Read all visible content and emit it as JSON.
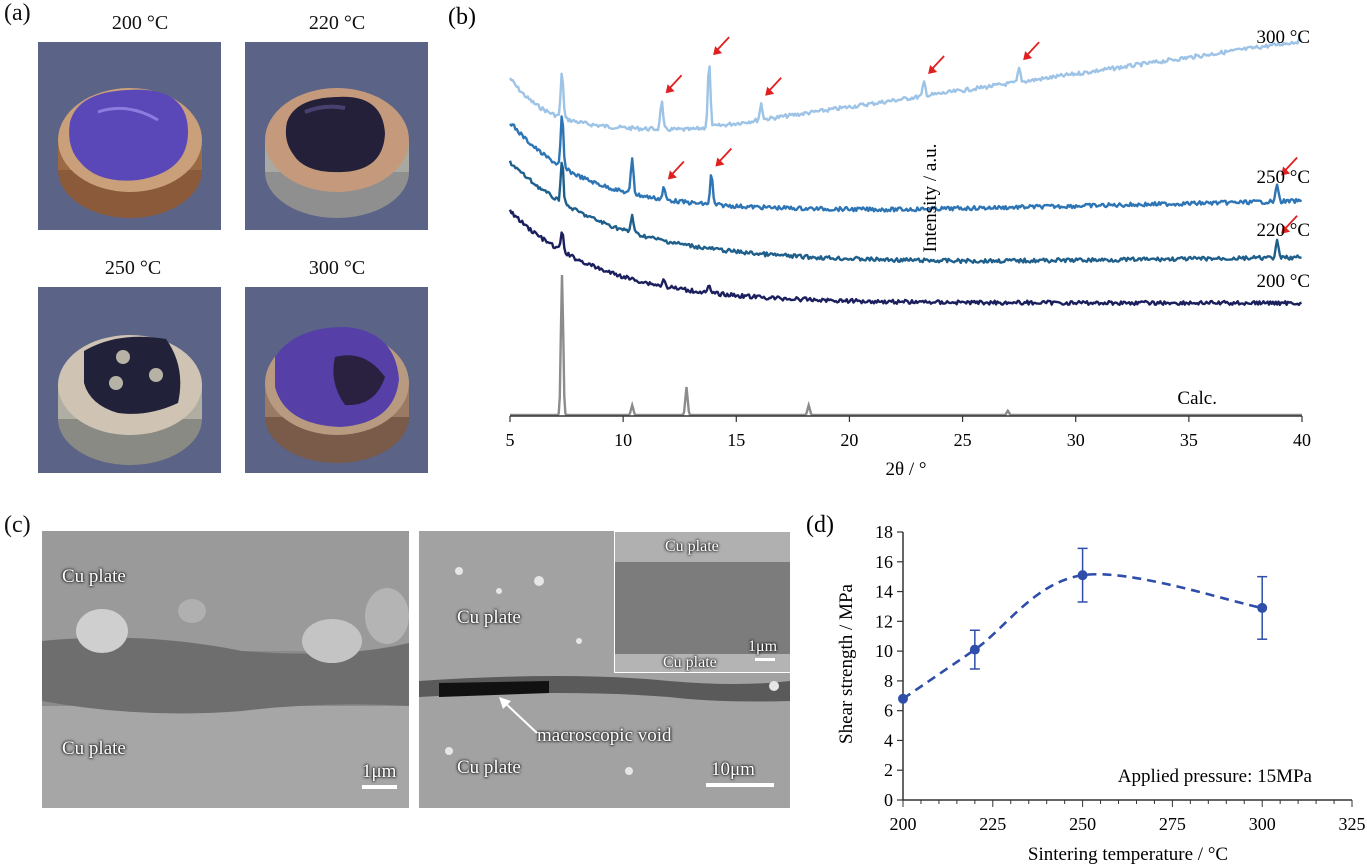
{
  "panel_a": {
    "label": "(a)",
    "samples": [
      {
        "temp": "200 °C"
      },
      {
        "temp": "220 °C"
      },
      {
        "temp": "250 °C"
      },
      {
        "temp": "300 °C"
      }
    ]
  },
  "panel_c": {
    "label": "(c)",
    "left": {
      "top_label": "Cu plate",
      "bottom_label": "Cu plate",
      "scale": "1μm"
    },
    "right": {
      "top_label": "Cu plate",
      "bottom_label": "Cu plate",
      "void_label": "macroscopic void",
      "scale": "10μm"
    },
    "inset": {
      "top_label": "Cu plate",
      "bottom_label": "Cu plate",
      "scale": "1μm"
    }
  },
  "colors": {
    "c300": "#9dc3e6",
    "c250": "#2e75b6",
    "c220": "#1f5f8b",
    "c200": "#1b1f5e",
    "calc": "#8c8c8c",
    "arrow": "#e02020",
    "strength": "#2f4eaa"
  },
  "chart_data": [
    {
      "panel": "(b)",
      "type": "line",
      "xlabel": "2θ / °",
      "ylabel": "Intensity / a.u.",
      "xlim": [
        5,
        40
      ],
      "xticks": [
        5,
        10,
        15,
        20,
        25,
        30,
        35,
        40
      ],
      "series": [
        {
          "name": "300 °C",
          "peaks": [
            7.3,
            11.7,
            13.8,
            16.1,
            23.3,
            27.5
          ],
          "marked_peaks": [
            11.7,
            13.8,
            16.1,
            23.3,
            27.5
          ]
        },
        {
          "name": "250 °C",
          "peaks": [
            7.3,
            10.4,
            11.8,
            13.9,
            38.9
          ],
          "marked_peaks": [
            11.8,
            13.9,
            38.9
          ]
        },
        {
          "name": "220 °C",
          "peaks": [
            7.3,
            10.4,
            38.9
          ],
          "marked_peaks": [
            38.9
          ]
        },
        {
          "name": "200 °C",
          "peaks": [
            7.3,
            11.8,
            13.8
          ],
          "marked_peaks": []
        },
        {
          "name": "Calc.",
          "peaks": [
            7.3,
            10.4,
            12.8,
            18.2,
            27.0
          ],
          "relative_heights": [
            1.0,
            0.07,
            0.2,
            0.07,
            0.03
          ]
        }
      ]
    },
    {
      "panel": "(d)",
      "type": "scatter",
      "xlabel": "Sintering temperature / °C",
      "ylabel": "Shear strength / MPa",
      "xlim": [
        200,
        325
      ],
      "ylim": [
        0,
        18
      ],
      "xticks": [
        200,
        225,
        250,
        275,
        300,
        325
      ],
      "yticks": [
        0,
        2,
        4,
        6,
        8,
        10,
        12,
        14,
        16,
        18
      ],
      "annotation": "Applied pressure: 15MPa",
      "points": [
        {
          "x": 200,
          "y": 6.8,
          "err": 0
        },
        {
          "x": 220,
          "y": 10.1,
          "err": 1.3
        },
        {
          "x": 250,
          "y": 15.1,
          "err": 1.8
        },
        {
          "x": 300,
          "y": 12.9,
          "err": 2.1
        }
      ]
    }
  ]
}
